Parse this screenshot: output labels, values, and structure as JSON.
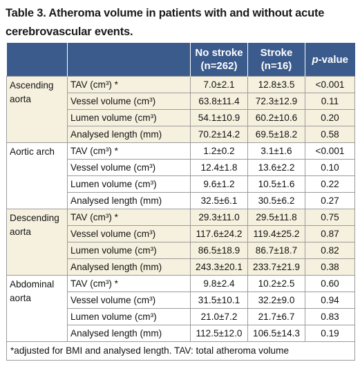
{
  "caption": "Table 3. Atheroma volume in patients with and without acute cerebrovascular events.",
  "header": {
    "col3_line1": "No stroke",
    "col3_line2": "(n=262)",
    "col4_line1": "Stroke",
    "col4_line2": "(n=16)",
    "col5_italic": "p",
    "col5_rest": "-value"
  },
  "groups": [
    {
      "name": "Ascending aorta",
      "shade": "shade",
      "rows": [
        {
          "measure": "TAV (cm³) *",
          "no_stroke": "7.0±2.1",
          "stroke": "12.8±3.5",
          "p": "<0.001"
        },
        {
          "measure": "Vessel volume (cm³)",
          "no_stroke": "63.8±11.4",
          "stroke": "72.3±12.9",
          "p": "0.11"
        },
        {
          "measure": "Lumen volume (cm³)",
          "no_stroke": "54.1±10.9",
          "stroke": "60.2±10.6",
          "p": "0.20"
        },
        {
          "measure": "Analysed length (mm)",
          "no_stroke": "70.2±14.2",
          "stroke": "69.5±18.2",
          "p": "0.58"
        }
      ]
    },
    {
      "name": "Aortic arch",
      "shade": "plain",
      "rows": [
        {
          "measure": "TAV (cm³) *",
          "no_stroke": "1.2±0.2",
          "stroke": "3.1±1.6",
          "p": "<0.001"
        },
        {
          "measure": "Vessel volume (cm³)",
          "no_stroke": "12.4±1.8",
          "stroke": "13.6±2.2",
          "p": "0.10"
        },
        {
          "measure": "Lumen volume (cm³)",
          "no_stroke": "9.6±1.2",
          "stroke": "10.5±1.6",
          "p": "0.22"
        },
        {
          "measure": "Analysed length (mm)",
          "no_stroke": "32.5±6.1",
          "stroke": "30.5±6.2",
          "p": "0.27"
        }
      ]
    },
    {
      "name": "Descending aorta",
      "shade": "shade",
      "rows": [
        {
          "measure": "TAV (cm³) *",
          "no_stroke": "29.3±11.0",
          "stroke": "29.5±11.8",
          "p": "0.75"
        },
        {
          "measure": "Vessel volume (cm³)",
          "no_stroke": "117.6±24.2",
          "stroke": "119.4±25.2",
          "p": "0.87"
        },
        {
          "measure": "Lumen volume (cm³)",
          "no_stroke": "86.5±18.9",
          "stroke": "86.7±18.7",
          "p": "0.82"
        },
        {
          "measure": "Analysed length (mm)",
          "no_stroke": "243.3±20.1",
          "stroke": "233.7±21.9",
          "p": "0.38"
        }
      ]
    },
    {
      "name": "Abdominal aorta",
      "shade": "plain",
      "rows": [
        {
          "measure": "TAV (cm³) *",
          "no_stroke": "9.8±2.4",
          "stroke": "10.2±2.5",
          "p": "0.60"
        },
        {
          "measure": "Vessel volume (cm³)",
          "no_stroke": "31.5±10.1",
          "stroke": "32.2±9.0",
          "p": "0.94"
        },
        {
          "measure": "Lumen volume (cm³)",
          "no_stroke": "21.0±7.2",
          "stroke": "21.7±6.7",
          "p": "0.83"
        },
        {
          "measure": "Analysed length (mm)",
          "no_stroke": "112.5±12.0",
          "stroke": "106.5±14.3",
          "p": "0.19"
        }
      ]
    }
  ],
  "footnote": "*adjusted for BMI and analysed length. TAV: total atheroma volume",
  "colors": {
    "header_bg": "#3b5b8c",
    "shade_bg": "#f6f1df",
    "border": "#9a9a9a"
  }
}
